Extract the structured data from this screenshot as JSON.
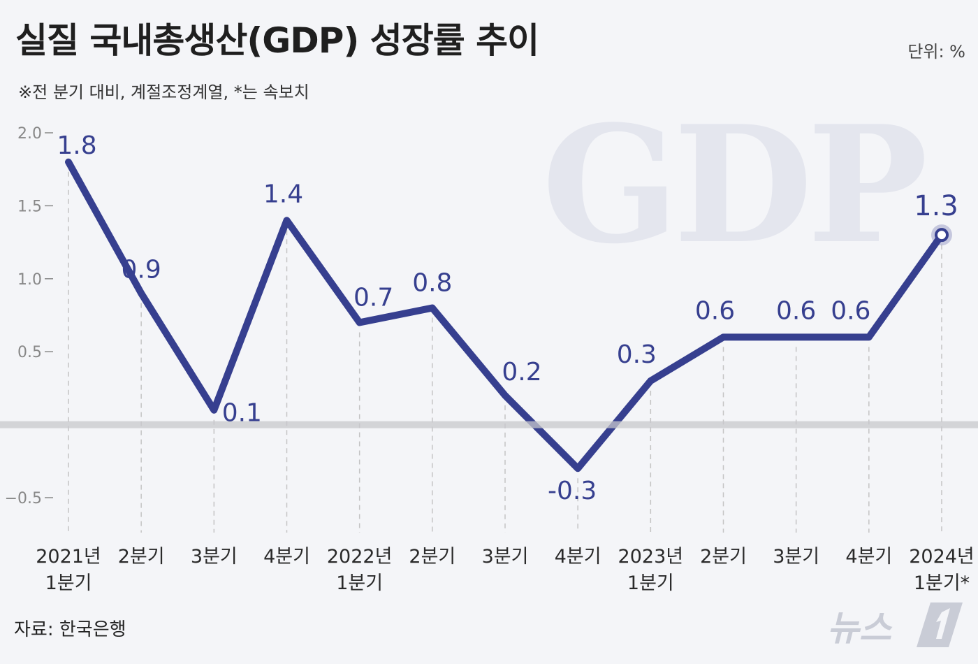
{
  "header": {
    "title": "실질 국내총생산(GDP) 성장률 추이",
    "subtitle": "※전 분기 대비, 계절조정계열, *는 속보치",
    "unit": "단위: %"
  },
  "footer": {
    "source": "자료: 한국은행",
    "logo_text": "뉴스1"
  },
  "watermark": "GDP",
  "colors": {
    "line": "#363f8f",
    "watermark": "#e4e6ee",
    "axis_text": "#888888",
    "grid": "#c4c4c4",
    "zero_line": "#c8c8cc",
    "logo": "#c9ccd6"
  },
  "chart_data": {
    "type": "line",
    "title": "실질 국내총생산(GDP) 성장률 추이",
    "categories": [
      [
        "2021년",
        "1분기"
      ],
      [
        "2분기"
      ],
      [
        "3분기"
      ],
      [
        "4분기"
      ],
      [
        "2022년",
        "1분기"
      ],
      [
        "2분기"
      ],
      [
        "3분기"
      ],
      [
        "4분기"
      ],
      [
        "2023년",
        "1분기"
      ],
      [
        "2분기"
      ],
      [
        "3분기"
      ],
      [
        "4분기"
      ],
      [
        "2024년",
        "1분기*"
      ]
    ],
    "series": [
      {
        "values": [
          1.8,
          0.9,
          0.1,
          1.4,
          0.7,
          0.8,
          0.2,
          -0.3,
          0.3,
          0.6,
          0.6,
          0.6,
          1.3
        ],
        "labels": [
          "1.8",
          "0.9",
          "0.1",
          "1.4",
          "0.7",
          "0.8",
          "0.2",
          "-0.3",
          "0.3",
          "0.6",
          "0.6",
          "0.6",
          "1.3"
        ]
      }
    ],
    "yticks": [
      2.0,
      1.5,
      1.0,
      0.5,
      -0.5
    ],
    "ytick_labels": [
      "2.0",
      "1.5",
      "1.0",
      "0.5",
      "−0.5"
    ],
    "ylim": [
      -0.7,
      2.0
    ],
    "highlight_last_point": true,
    "grid": "vertical dashed at each category",
    "legend": "none"
  }
}
